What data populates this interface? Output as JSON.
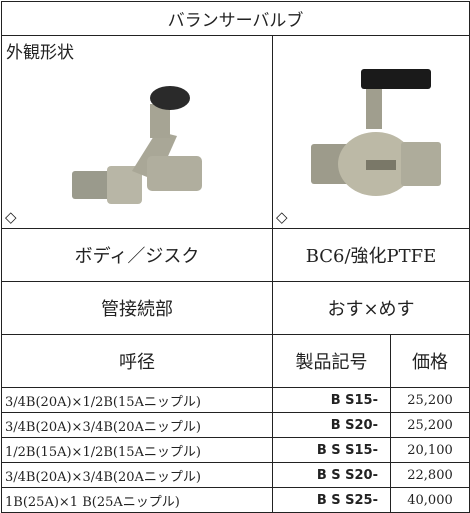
{
  "header": {
    "title": "バランサーバルブ"
  },
  "image_row": {
    "label": "外観形状",
    "marks": [
      "◇",
      "◇"
    ]
  },
  "body_row": {
    "label": "ボディ／ジスク",
    "value": "BC6/強化PTFE"
  },
  "connection_row": {
    "label": "管接続部",
    "value": "おす×めす"
  },
  "table": {
    "headers": [
      "呼径",
      "製品記号",
      "価格"
    ],
    "rows": [
      [
        "3/4B(20A)×1/2B(15Aニップル)",
        "B S15-",
        "25,200"
      ],
      [
        "3/4B(20A)×3/4B(20Aニップル)",
        "B S20-",
        "25,200"
      ],
      [
        "1/2B(15A)×1/2B(15Aニップル)",
        "B S S15-",
        "20,100"
      ],
      [
        "3/4B(20A)×3/4B(20Aニップル)",
        "B S S20-",
        "22,800"
      ],
      [
        "1B(25A)×1 B(25Aニップル)",
        "B S S25-",
        "40,000"
      ]
    ]
  }
}
